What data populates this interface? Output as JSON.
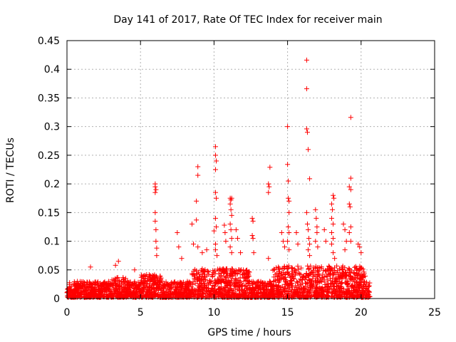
{
  "chart_data": {
    "type": "scatter",
    "title": "Day 141 of 2017, Rate Of TEC Index for receiver main",
    "xlabel": "GPS time / hours",
    "ylabel": "ROTI / TECUs",
    "xlim": [
      0,
      25
    ],
    "ylim": [
      0,
      0.45
    ],
    "x_ticks": [
      "0",
      "5",
      "10",
      "15",
      "20",
      "25"
    ],
    "y_ticks": [
      "0",
      "0.05",
      "0.1",
      "0.15",
      "0.2",
      "0.25",
      "0.3",
      "0.35",
      "0.4",
      "0.45"
    ],
    "grid": true,
    "legend": "none",
    "marker": "+",
    "color": "#ff0000",
    "series": [
      {
        "points": [
          [
            1.6,
            0.055
          ],
          [
            3.3,
            0.058
          ],
          [
            3.5,
            0.065
          ],
          [
            4.6,
            0.05
          ],
          [
            6.0,
            0.2
          ],
          [
            6.0,
            0.195
          ],
          [
            6.05,
            0.19
          ],
          [
            6.0,
            0.185
          ],
          [
            6.0,
            0.15
          ],
          [
            6.0,
            0.135
          ],
          [
            6.05,
            0.12
          ],
          [
            6.05,
            0.1
          ],
          [
            6.1,
            0.088
          ],
          [
            6.1,
            0.075
          ],
          [
            7.5,
            0.115
          ],
          [
            7.6,
            0.09
          ],
          [
            7.8,
            0.07
          ],
          [
            8.5,
            0.13
          ],
          [
            8.6,
            0.095
          ],
          [
            8.9,
            0.23
          ],
          [
            8.9,
            0.215
          ],
          [
            8.8,
            0.17
          ],
          [
            8.8,
            0.137
          ],
          [
            8.9,
            0.09
          ],
          [
            9.2,
            0.08
          ],
          [
            9.5,
            0.085
          ],
          [
            10.1,
            0.265
          ],
          [
            10.1,
            0.25
          ],
          [
            10.15,
            0.24
          ],
          [
            10.1,
            0.225
          ],
          [
            10.1,
            0.185
          ],
          [
            10.15,
            0.175
          ],
          [
            10.1,
            0.14
          ],
          [
            10.15,
            0.125
          ],
          [
            10.0,
            0.118
          ],
          [
            10.1,
            0.095
          ],
          [
            10.1,
            0.085
          ],
          [
            10.2,
            0.075
          ],
          [
            10.7,
            0.128
          ],
          [
            10.75,
            0.115
          ],
          [
            10.8,
            0.1
          ],
          [
            11.1,
            0.175
          ],
          [
            11.15,
            0.172
          ],
          [
            11.2,
            0.175
          ],
          [
            11.1,
            0.165
          ],
          [
            11.15,
            0.155
          ],
          [
            11.2,
            0.145
          ],
          [
            11.1,
            0.13
          ],
          [
            11.15,
            0.12
          ],
          [
            11.2,
            0.105
          ],
          [
            11.1,
            0.09
          ],
          [
            11.2,
            0.08
          ],
          [
            11.5,
            0.12
          ],
          [
            11.6,
            0.105
          ],
          [
            11.8,
            0.08
          ],
          [
            12.6,
            0.14
          ],
          [
            12.65,
            0.135
          ],
          [
            12.6,
            0.11
          ],
          [
            12.65,
            0.105
          ],
          [
            12.7,
            0.08
          ],
          [
            13.7,
            0.2
          ],
          [
            13.75,
            0.195
          ],
          [
            13.7,
            0.185
          ],
          [
            13.8,
            0.229
          ],
          [
            13.7,
            0.07
          ],
          [
            14.6,
            0.115
          ],
          [
            14.7,
            0.1
          ],
          [
            14.8,
            0.09
          ],
          [
            15.0,
            0.3
          ],
          [
            15.0,
            0.234
          ],
          [
            15.05,
            0.205
          ],
          [
            15.05,
            0.175
          ],
          [
            15.1,
            0.17
          ],
          [
            15.1,
            0.15
          ],
          [
            15.05,
            0.125
          ],
          [
            15.1,
            0.115
          ],
          [
            15.0,
            0.1
          ],
          [
            15.1,
            0.085
          ],
          [
            15.6,
            0.115
          ],
          [
            15.7,
            0.095
          ],
          [
            16.3,
            0.416
          ],
          [
            16.3,
            0.366
          ],
          [
            16.3,
            0.296
          ],
          [
            16.35,
            0.29
          ],
          [
            16.4,
            0.26
          ],
          [
            16.5,
            0.209
          ],
          [
            16.3,
            0.15
          ],
          [
            16.35,
            0.13
          ],
          [
            16.4,
            0.12
          ],
          [
            16.45,
            0.105
          ],
          [
            16.5,
            0.095
          ],
          [
            16.4,
            0.085
          ],
          [
            16.5,
            0.075
          ],
          [
            16.9,
            0.155
          ],
          [
            16.95,
            0.14
          ],
          [
            17.0,
            0.125
          ],
          [
            17.0,
            0.115
          ],
          [
            16.9,
            0.1
          ],
          [
            17.05,
            0.09
          ],
          [
            17.5,
            0.12
          ],
          [
            17.6,
            0.1
          ],
          [
            18.0,
            0.165
          ],
          [
            18.05,
            0.155
          ],
          [
            18.1,
            0.18
          ],
          [
            18.15,
            0.175
          ],
          [
            18.0,
            0.14
          ],
          [
            18.1,
            0.13
          ],
          [
            18.0,
            0.115
          ],
          [
            18.1,
            0.105
          ],
          [
            18.0,
            0.095
          ],
          [
            18.1,
            0.08
          ],
          [
            18.2,
            0.07
          ],
          [
            18.8,
            0.13
          ],
          [
            18.9,
            0.12
          ],
          [
            19.0,
            0.1
          ],
          [
            18.9,
            0.085
          ],
          [
            19.3,
            0.316
          ],
          [
            19.3,
            0.21
          ],
          [
            19.2,
            0.195
          ],
          [
            19.3,
            0.19
          ],
          [
            19.2,
            0.165
          ],
          [
            19.25,
            0.16
          ],
          [
            19.3,
            0.125
          ],
          [
            19.2,
            0.115
          ],
          [
            19.3,
            0.1
          ],
          [
            19.8,
            0.095
          ],
          [
            19.9,
            0.09
          ],
          [
            20.0,
            0.08
          ]
        ]
      }
    ]
  }
}
